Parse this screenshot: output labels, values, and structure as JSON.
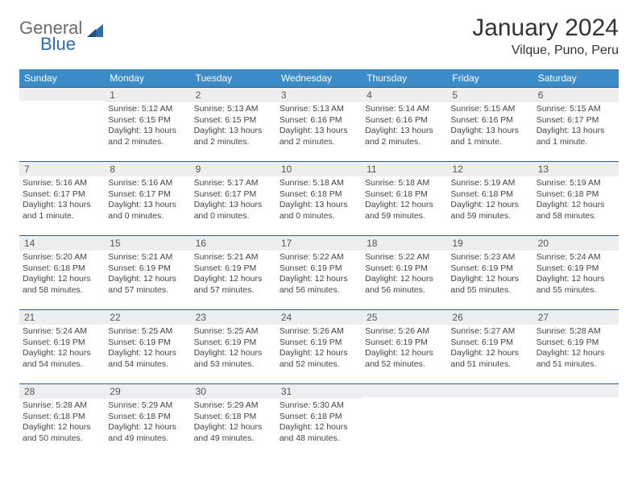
{
  "logo": {
    "word1": "General",
    "word2": "Blue"
  },
  "title": "January 2024",
  "location": "Vilque, Puno, Peru",
  "weekday_labels": [
    "Sunday",
    "Monday",
    "Tuesday",
    "Wednesday",
    "Thursday",
    "Friday",
    "Saturday"
  ],
  "colors": {
    "header_blue": "#3b8bc9",
    "row_divider": "#2c5f8d",
    "date_bg": "#eceef0",
    "logo_blue": "#2a6db0"
  },
  "weeks": [
    [
      {
        "date": "",
        "sunrise": "",
        "sunset": "",
        "daylight": ""
      },
      {
        "date": "1",
        "sunrise": "Sunrise: 5:12 AM",
        "sunset": "Sunset: 6:15 PM",
        "daylight": "Daylight: 13 hours and 2 minutes."
      },
      {
        "date": "2",
        "sunrise": "Sunrise: 5:13 AM",
        "sunset": "Sunset: 6:15 PM",
        "daylight": "Daylight: 13 hours and 2 minutes."
      },
      {
        "date": "3",
        "sunrise": "Sunrise: 5:13 AM",
        "sunset": "Sunset: 6:16 PM",
        "daylight": "Daylight: 13 hours and 2 minutes."
      },
      {
        "date": "4",
        "sunrise": "Sunrise: 5:14 AM",
        "sunset": "Sunset: 6:16 PM",
        "daylight": "Daylight: 13 hours and 2 minutes."
      },
      {
        "date": "5",
        "sunrise": "Sunrise: 5:15 AM",
        "sunset": "Sunset: 6:16 PM",
        "daylight": "Daylight: 13 hours and 1 minute."
      },
      {
        "date": "6",
        "sunrise": "Sunrise: 5:15 AM",
        "sunset": "Sunset: 6:17 PM",
        "daylight": "Daylight: 13 hours and 1 minute."
      }
    ],
    [
      {
        "date": "7",
        "sunrise": "Sunrise: 5:16 AM",
        "sunset": "Sunset: 6:17 PM",
        "daylight": "Daylight: 13 hours and 1 minute."
      },
      {
        "date": "8",
        "sunrise": "Sunrise: 5:16 AM",
        "sunset": "Sunset: 6:17 PM",
        "daylight": "Daylight: 13 hours and 0 minutes."
      },
      {
        "date": "9",
        "sunrise": "Sunrise: 5:17 AM",
        "sunset": "Sunset: 6:17 PM",
        "daylight": "Daylight: 13 hours and 0 minutes."
      },
      {
        "date": "10",
        "sunrise": "Sunrise: 5:18 AM",
        "sunset": "Sunset: 6:18 PM",
        "daylight": "Daylight: 13 hours and 0 minutes."
      },
      {
        "date": "11",
        "sunrise": "Sunrise: 5:18 AM",
        "sunset": "Sunset: 6:18 PM",
        "daylight": "Daylight: 12 hours and 59 minutes."
      },
      {
        "date": "12",
        "sunrise": "Sunrise: 5:19 AM",
        "sunset": "Sunset: 6:18 PM",
        "daylight": "Daylight: 12 hours and 59 minutes."
      },
      {
        "date": "13",
        "sunrise": "Sunrise: 5:19 AM",
        "sunset": "Sunset: 6:18 PM",
        "daylight": "Daylight: 12 hours and 58 minutes."
      }
    ],
    [
      {
        "date": "14",
        "sunrise": "Sunrise: 5:20 AM",
        "sunset": "Sunset: 6:18 PM",
        "daylight": "Daylight: 12 hours and 58 minutes."
      },
      {
        "date": "15",
        "sunrise": "Sunrise: 5:21 AM",
        "sunset": "Sunset: 6:19 PM",
        "daylight": "Daylight: 12 hours and 57 minutes."
      },
      {
        "date": "16",
        "sunrise": "Sunrise: 5:21 AM",
        "sunset": "Sunset: 6:19 PM",
        "daylight": "Daylight: 12 hours and 57 minutes."
      },
      {
        "date": "17",
        "sunrise": "Sunrise: 5:22 AM",
        "sunset": "Sunset: 6:19 PM",
        "daylight": "Daylight: 12 hours and 56 minutes."
      },
      {
        "date": "18",
        "sunrise": "Sunrise: 5:22 AM",
        "sunset": "Sunset: 6:19 PM",
        "daylight": "Daylight: 12 hours and 56 minutes."
      },
      {
        "date": "19",
        "sunrise": "Sunrise: 5:23 AM",
        "sunset": "Sunset: 6:19 PM",
        "daylight": "Daylight: 12 hours and 55 minutes."
      },
      {
        "date": "20",
        "sunrise": "Sunrise: 5:24 AM",
        "sunset": "Sunset: 6:19 PM",
        "daylight": "Daylight: 12 hours and 55 minutes."
      }
    ],
    [
      {
        "date": "21",
        "sunrise": "Sunrise: 5:24 AM",
        "sunset": "Sunset: 6:19 PM",
        "daylight": "Daylight: 12 hours and 54 minutes."
      },
      {
        "date": "22",
        "sunrise": "Sunrise: 5:25 AM",
        "sunset": "Sunset: 6:19 PM",
        "daylight": "Daylight: 12 hours and 54 minutes."
      },
      {
        "date": "23",
        "sunrise": "Sunrise: 5:25 AM",
        "sunset": "Sunset: 6:19 PM",
        "daylight": "Daylight: 12 hours and 53 minutes."
      },
      {
        "date": "24",
        "sunrise": "Sunrise: 5:26 AM",
        "sunset": "Sunset: 6:19 PM",
        "daylight": "Daylight: 12 hours and 52 minutes."
      },
      {
        "date": "25",
        "sunrise": "Sunrise: 5:26 AM",
        "sunset": "Sunset: 6:19 PM",
        "daylight": "Daylight: 12 hours and 52 minutes."
      },
      {
        "date": "26",
        "sunrise": "Sunrise: 5:27 AM",
        "sunset": "Sunset: 6:19 PM",
        "daylight": "Daylight: 12 hours and 51 minutes."
      },
      {
        "date": "27",
        "sunrise": "Sunrise: 5:28 AM",
        "sunset": "Sunset: 6:19 PM",
        "daylight": "Daylight: 12 hours and 51 minutes."
      }
    ],
    [
      {
        "date": "28",
        "sunrise": "Sunrise: 5:28 AM",
        "sunset": "Sunset: 6:18 PM",
        "daylight": "Daylight: 12 hours and 50 minutes."
      },
      {
        "date": "29",
        "sunrise": "Sunrise: 5:29 AM",
        "sunset": "Sunset: 6:18 PM",
        "daylight": "Daylight: 12 hours and 49 minutes."
      },
      {
        "date": "30",
        "sunrise": "Sunrise: 5:29 AM",
        "sunset": "Sunset: 6:18 PM",
        "daylight": "Daylight: 12 hours and 49 minutes."
      },
      {
        "date": "31",
        "sunrise": "Sunrise: 5:30 AM",
        "sunset": "Sunset: 6:18 PM",
        "daylight": "Daylight: 12 hours and 48 minutes."
      },
      {
        "date": "",
        "sunrise": "",
        "sunset": "",
        "daylight": ""
      },
      {
        "date": "",
        "sunrise": "",
        "sunset": "",
        "daylight": ""
      },
      {
        "date": "",
        "sunrise": "",
        "sunset": "",
        "daylight": ""
      }
    ]
  ]
}
